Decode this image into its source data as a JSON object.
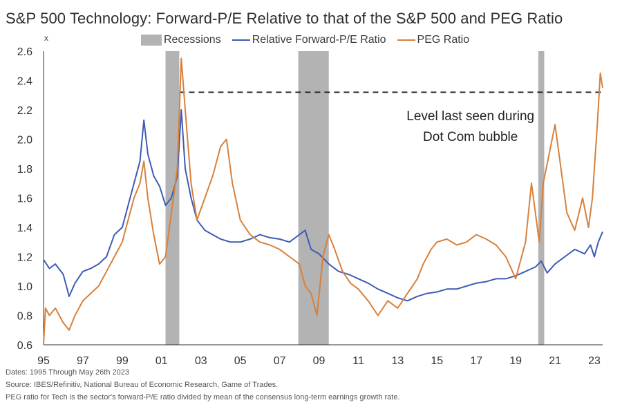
{
  "title": "S&P 500 Technology: Forward-P/E Relative to that of the S&P 500 and PEG Ratio",
  "chart_data": {
    "type": "line",
    "ylabel": "x",
    "xlabel": "",
    "ylim": [
      0.6,
      2.6
    ],
    "yticks": [
      0.6,
      0.8,
      1.0,
      1.2,
      1.4,
      1.6,
      1.8,
      2.0,
      2.2,
      2.4,
      2.6
    ],
    "ytick_labels": [
      "0.6",
      "0.8",
      "1.0",
      "1.2",
      "1.4",
      "1.6",
      "1.8",
      "2.0",
      "2.2",
      "2.4",
      "2.6"
    ],
    "xlim": [
      1995.0,
      2023.42
    ],
    "xticks": [
      1995,
      1997,
      1999,
      2001,
      2003,
      2005,
      2007,
      2009,
      2011,
      2013,
      2015,
      2017,
      2019,
      2021,
      2023
    ],
    "xtick_labels": [
      "95",
      "97",
      "99",
      "01",
      "03",
      "05",
      "07",
      "09",
      "11",
      "13",
      "15",
      "17",
      "19",
      "21",
      "23"
    ],
    "grid": false,
    "legend_position": "top-center",
    "legend": {
      "recessions": "Recessions",
      "relative": "Relative Forward-P/E Ratio",
      "peg": "PEG Ratio"
    },
    "recessions": [
      {
        "start": 2001.2,
        "end": 2001.9
      },
      {
        "start": 2007.95,
        "end": 2009.5
      },
      {
        "start": 2020.15,
        "end": 2020.45
      }
    ],
    "reference_line": {
      "y": 2.32,
      "x_start": 2001.9,
      "x_end": 2023.42
    },
    "annotation": {
      "line1": "Level last seen during",
      "line2": "Dot Com bubble",
      "x": 2016.7,
      "y": 2.13
    },
    "colors": {
      "relative": "#3d5bb5",
      "peg": "#d8803a",
      "recession": "#b3b3b3",
      "reference": "#222222",
      "axis": "#333333"
    },
    "series": [
      {
        "name": "Relative Forward-P/E Ratio",
        "color": "#3d5bb5",
        "x": [
          1995.0,
          1995.3,
          1995.6,
          1996.0,
          1996.3,
          1996.6,
          1997.0,
          1997.4,
          1997.8,
          1998.2,
          1998.6,
          1999.0,
          1999.3,
          1999.6,
          1999.9,
          2000.1,
          2000.3,
          2000.6,
          2000.9,
          2001.2,
          2001.5,
          2001.8,
          2002.0,
          2002.2,
          2002.5,
          2002.8,
          2003.2,
          2003.6,
          2004.0,
          2004.5,
          2005.0,
          2005.5,
          2006.0,
          2006.5,
          2007.0,
          2007.5,
          2008.0,
          2008.3,
          2008.6,
          2009.0,
          2009.5,
          2010.0,
          2010.5,
          2011.0,
          2011.5,
          2012.0,
          2012.5,
          2013.0,
          2013.5,
          2014.0,
          2014.5,
          2015.0,
          2015.5,
          2016.0,
          2016.5,
          2017.0,
          2017.5,
          2018.0,
          2018.5,
          2019.0,
          2019.5,
          2020.0,
          2020.3,
          2020.6,
          2021.0,
          2021.5,
          2022.0,
          2022.5,
          2022.8,
          2023.0,
          2023.2,
          2023.42
        ],
        "values": [
          1.18,
          1.12,
          1.15,
          1.08,
          0.93,
          1.02,
          1.1,
          1.12,
          1.15,
          1.2,
          1.35,
          1.4,
          1.55,
          1.7,
          1.85,
          2.13,
          1.9,
          1.75,
          1.68,
          1.55,
          1.6,
          1.75,
          2.2,
          1.8,
          1.6,
          1.45,
          1.38,
          1.35,
          1.32,
          1.3,
          1.3,
          1.32,
          1.35,
          1.33,
          1.32,
          1.3,
          1.35,
          1.38,
          1.25,
          1.22,
          1.15,
          1.1,
          1.08,
          1.05,
          1.02,
          0.98,
          0.95,
          0.92,
          0.9,
          0.93,
          0.95,
          0.96,
          0.98,
          0.98,
          1.0,
          1.02,
          1.03,
          1.05,
          1.05,
          1.07,
          1.1,
          1.13,
          1.17,
          1.09,
          1.15,
          1.2,
          1.25,
          1.22,
          1.28,
          1.2,
          1.3,
          1.37
        ]
      },
      {
        "name": "PEG Ratio",
        "color": "#d8803a",
        "x": [
          1995.0,
          1995.1,
          1995.3,
          1995.6,
          1996.0,
          1996.3,
          1996.6,
          1997.0,
          1997.4,
          1997.8,
          1998.2,
          1998.6,
          1999.0,
          1999.3,
          1999.6,
          1999.9,
          2000.1,
          2000.3,
          2000.6,
          2000.9,
          2001.2,
          2001.5,
          2001.8,
          2002.0,
          2002.2,
          2002.5,
          2002.8,
          2003.2,
          2003.6,
          2004.0,
          2004.3,
          2004.6,
          2005.0,
          2005.5,
          2006.0,
          2006.5,
          2007.0,
          2007.5,
          2008.0,
          2008.3,
          2008.6,
          2008.9,
          2009.2,
          2009.5,
          2009.8,
          2010.2,
          2010.6,
          2011.0,
          2011.5,
          2012.0,
          2012.5,
          2013.0,
          2013.5,
          2014.0,
          2014.3,
          2014.7,
          2015.0,
          2015.5,
          2016.0,
          2016.5,
          2017.0,
          2017.5,
          2018.0,
          2018.5,
          2019.0,
          2019.5,
          2019.8,
          2020.0,
          2020.2,
          2020.4,
          2020.7,
          2021.0,
          2021.3,
          2021.6,
          2022.0,
          2022.4,
          2022.7,
          2022.9,
          2023.0,
          2023.15,
          2023.3,
          2023.42
        ],
        "values": [
          0.6,
          0.85,
          0.8,
          0.85,
          0.75,
          0.7,
          0.8,
          0.9,
          0.95,
          1.0,
          1.1,
          1.2,
          1.3,
          1.45,
          1.6,
          1.7,
          1.85,
          1.6,
          1.35,
          1.15,
          1.2,
          1.5,
          1.8,
          2.55,
          2.2,
          1.7,
          1.45,
          1.6,
          1.75,
          1.95,
          2.0,
          1.7,
          1.45,
          1.35,
          1.3,
          1.28,
          1.25,
          1.2,
          1.15,
          1.0,
          0.95,
          0.8,
          1.2,
          1.35,
          1.25,
          1.1,
          1.02,
          0.98,
          0.9,
          0.8,
          0.9,
          0.85,
          0.95,
          1.05,
          1.15,
          1.25,
          1.3,
          1.32,
          1.28,
          1.3,
          1.35,
          1.32,
          1.28,
          1.2,
          1.05,
          1.3,
          1.7,
          1.5,
          1.3,
          1.7,
          1.9,
          2.1,
          1.8,
          1.5,
          1.38,
          1.6,
          1.4,
          1.6,
          1.8,
          2.1,
          2.45,
          2.35
        ]
      }
    ]
  },
  "footer": {
    "line1": "Dates: 1995 Through May 26th 2023",
    "line2": "Source: IBES/Refinitiv, National Bureau of Economic Research, Game of Trades.",
    "line3": "PEG ratio for Tech is the sector's forward-P/E ratio divided by mean of the consensus long-term earnings growth rate."
  }
}
